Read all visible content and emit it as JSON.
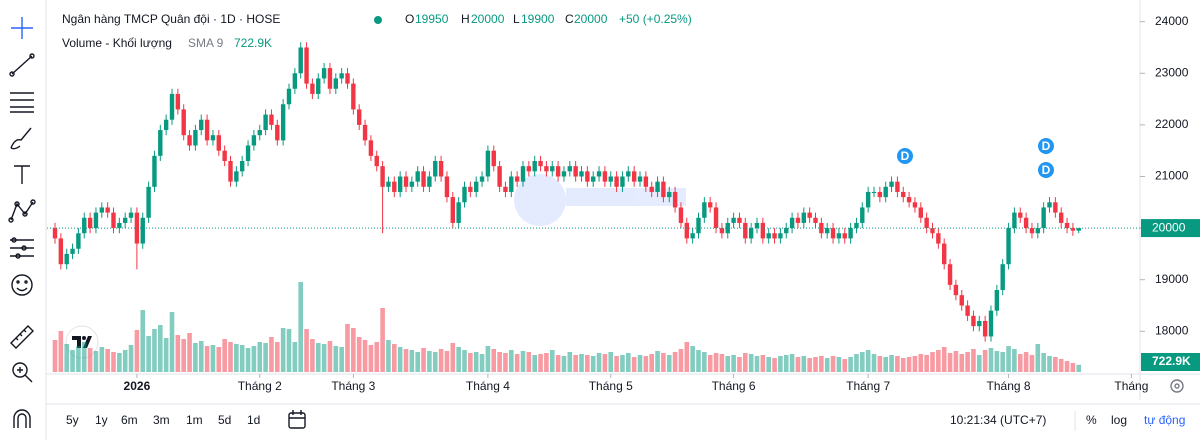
{
  "header": {
    "title": "Ngân hàng TMCP Quân đội · 1D · HOSE",
    "open_label": "O",
    "open": 19950,
    "high_label": "H",
    "high": 20000,
    "low_label": "L",
    "low": 19900,
    "close_label": "C",
    "close": 20000,
    "change": "+50 (+0.25%)"
  },
  "volume_legend": {
    "name": "Volume - Khối lượng",
    "sma": "SMA 9",
    "value": "722.9K"
  },
  "dividend_markers": [
    "D",
    "D",
    "D"
  ],
  "bottom_bar": {
    "ranges": [
      "5y",
      "1y",
      "6m",
      "3m",
      "1m",
      "5d",
      "1d"
    ],
    "time": "10:21:34 (UTC+7)",
    "percent": "%",
    "log": "log",
    "auto": "tự động"
  },
  "chart_data": {
    "type": "candlestick",
    "up_color": "#089981",
    "down_color": "#f23645",
    "ylim": [
      17250,
      24420
    ],
    "yticks": [
      18000,
      19000,
      20000,
      21000,
      22000,
      23000,
      24000
    ],
    "xticks": [
      {
        "value": 14,
        "label": "2026"
      },
      {
        "value": 35,
        "label": "Tháng 2"
      },
      {
        "value": 51,
        "label": "Tháng 3"
      },
      {
        "value": 74,
        "label": "Tháng 4"
      },
      {
        "value": 95,
        "label": "Tháng 5"
      },
      {
        "value": 116,
        "label": "Tháng 6"
      },
      {
        "value": 139,
        "label": "Tháng 7"
      },
      {
        "value": 163,
        "label": "Tháng 8"
      },
      {
        "value": 184,
        "label": "Tháng"
      }
    ],
    "volume_tag": "722.9K",
    "open": [
      20000,
      19800,
      19300,
      19500,
      19600,
      19900,
      20200,
      20000,
      20300,
      20400,
      20300,
      20000,
      20100,
      20200,
      20300,
      19700,
      20200,
      20800,
      21400,
      21900,
      22100,
      22600,
      22300,
      21800,
      21600,
      21900,
      22100,
      21700,
      21800,
      21500,
      21300,
      20900,
      21100,
      21300,
      21600,
      21800,
      21900,
      22200,
      22000,
      21700,
      22400,
      22700,
      23000,
      23500,
      22800,
      22600,
      22900,
      23100,
      22700,
      22900,
      23000,
      22800,
      22300,
      22000,
      21700,
      21400,
      21200,
      20800,
      20900,
      20700,
      21000,
      20800,
      20900,
      21100,
      20800,
      21000,
      21300,
      21000,
      20600,
      20100,
      20500,
      20800,
      20700,
      20900,
      21000,
      21500,
      21200,
      20800,
      20700,
      21000,
      20900,
      21200,
      21100,
      21300,
      21200,
      21100,
      21200,
      21000,
      21100,
      21200,
      21000,
      21100,
      20900,
      21000,
      21100,
      20900,
      21000,
      20800,
      21000,
      21100,
      20900,
      21000,
      20800,
      20700,
      20900,
      20600,
      20700,
      20400,
      20100,
      19800,
      19900,
      20200,
      20500,
      20400,
      20000,
      19900,
      20100,
      20200,
      20100,
      19800,
      20000,
      20100,
      19800,
      19900,
      19800,
      19900,
      20000,
      20200,
      20100,
      20300,
      20200,
      20100,
      19900,
      20000,
      19800,
      19900,
      19800,
      20000,
      20100,
      20400,
      20700,
      20700,
      20600,
      20800,
      20900,
      20700,
      20600,
      20500,
      20400,
      20200,
      20000,
      19900,
      19700,
      19300,
      18900,
      18700,
      18500,
      18300,
      18100,
      18200,
      17900,
      18400,
      18800,
      19300,
      20000,
      20300,
      20200,
      20000,
      19900,
      20000,
      20400,
      20500,
      20300,
      20100,
      20000,
      19950
    ],
    "high": [
      20100,
      19900,
      19600,
      19700,
      20000,
      20300,
      20300,
      20400,
      20500,
      20500,
      20400,
      20200,
      20300,
      20400,
      20400,
      20300,
      20900,
      21500,
      22000,
      22200,
      22700,
      22700,
      22400,
      21900,
      22000,
      22200,
      22200,
      21900,
      21900,
      21600,
      21400,
      21200,
      21400,
      21700,
      21900,
      22000,
      22300,
      22300,
      22100,
      22500,
      22800,
      23100,
      23600,
      23600,
      22900,
      23000,
      23200,
      23200,
      23000,
      23100,
      23100,
      22900,
      22400,
      22100,
      21800,
      21500,
      21300,
      21000,
      21000,
      21100,
      21100,
      21000,
      21200,
      21200,
      21100,
      21400,
      21400,
      21100,
      20700,
      20600,
      20900,
      20900,
      21000,
      21100,
      21600,
      21600,
      21300,
      20900,
      21100,
      21100,
      21300,
      21300,
      21400,
      21400,
      21300,
      21300,
      21300,
      21200,
      21300,
      21300,
      21200,
      21200,
      21100,
      21200,
      21200,
      21100,
      21100,
      21100,
      21200,
      21200,
      21100,
      21100,
      20900,
      21000,
      21000,
      20800,
      20800,
      20500,
      20200,
      20000,
      20300,
      20600,
      20600,
      20500,
      20100,
      20200,
      20300,
      20300,
      20200,
      20100,
      20200,
      20200,
      20000,
      20000,
      20000,
      20100,
      20300,
      20300,
      20400,
      20400,
      20300,
      20200,
      20100,
      20100,
      20000,
      20000,
      20100,
      20200,
      20500,
      20800,
      20800,
      20800,
      20900,
      21000,
      21000,
      20800,
      20700,
      20600,
      20500,
      20300,
      20100,
      20000,
      19800,
      19400,
      19000,
      18800,
      18600,
      18400,
      18300,
      18300,
      18500,
      18900,
      19400,
      20100,
      20400,
      20400,
      20300,
      20100,
      20100,
      20500,
      20600,
      20600,
      20400,
      20200,
      20100,
      20000
    ],
    "low": [
      19700,
      19200,
      19200,
      19400,
      19500,
      19800,
      19900,
      19900,
      20200,
      20200,
      19900,
      19900,
      20000,
      20100,
      19200,
      19600,
      20100,
      20700,
      21300,
      21800,
      22000,
      22200,
      21700,
      21500,
      21500,
      21800,
      21600,
      21600,
      21400,
      21200,
      20800,
      20800,
      21000,
      21200,
      21500,
      21700,
      21800,
      21900,
      21600,
      21600,
      22300,
      22600,
      22900,
      22700,
      22500,
      22500,
      22800,
      22600,
      22600,
      22800,
      22700,
      22200,
      21900,
      21600,
      21300,
      21100,
      19900,
      20700,
      20600,
      20600,
      20700,
      20700,
      20800,
      20700,
      20700,
      20900,
      20900,
      20500,
      20000,
      20000,
      20400,
      20600,
      20600,
      20800,
      20900,
      21100,
      20700,
      20600,
      20600,
      20800,
      20800,
      21000,
      21000,
      21100,
      21000,
      21000,
      20900,
      20900,
      21000,
      20900,
      20900,
      20800,
      20800,
      20900,
      20800,
      20800,
      20700,
      20700,
      20900,
      20800,
      20800,
      20700,
      20600,
      20600,
      20500,
      20500,
      20300,
      20000,
      19700,
      19700,
      19800,
      20100,
      20300,
      19900,
      19800,
      19800,
      20000,
      20000,
      19700,
      19700,
      19900,
      19700,
      19700,
      19700,
      19700,
      19800,
      19900,
      20000,
      20000,
      20100,
      20000,
      19800,
      19800,
      19700,
      19700,
      19700,
      19700,
      19900,
      20000,
      20300,
      20600,
      20500,
      20500,
      20700,
      20600,
      20500,
      20400,
      20300,
      20100,
      19900,
      19800,
      19600,
      19200,
      18800,
      18600,
      18400,
      18200,
      18000,
      18000,
      17800,
      17800,
      18300,
      18700,
      19200,
      19900,
      20100,
      19900,
      19800,
      19800,
      19900,
      20300,
      20200,
      20000,
      19900,
      19850,
      19900
    ],
    "close": [
      19800,
      19300,
      19500,
      19600,
      19900,
      20200,
      20000,
      20300,
      20400,
      20300,
      20000,
      20100,
      20200,
      20300,
      19700,
      20200,
      20800,
      21400,
      21900,
      22100,
      22600,
      22300,
      21800,
      21600,
      21900,
      22100,
      21700,
      21800,
      21500,
      21300,
      20900,
      21100,
      21300,
      21600,
      21800,
      21900,
      22200,
      22000,
      21700,
      22400,
      22700,
      23000,
      23500,
      22800,
      22600,
      22900,
      23100,
      22700,
      22900,
      23000,
      22800,
      22300,
      22000,
      21700,
      21400,
      21200,
      20800,
      20900,
      20700,
      21000,
      20800,
      20900,
      21100,
      20800,
      21000,
      21300,
      21000,
      20600,
      20100,
      20500,
      20800,
      20700,
      20900,
      21000,
      21500,
      21200,
      20800,
      20700,
      21000,
      20900,
      21200,
      21100,
      21300,
      21200,
      21100,
      21200,
      21000,
      21100,
      21200,
      21000,
      21100,
      20900,
      21000,
      21100,
      20900,
      21000,
      20800,
      21000,
      21100,
      20900,
      21000,
      20800,
      20700,
      20900,
      20600,
      20700,
      20400,
      20100,
      19800,
      19900,
      20200,
      20500,
      20400,
      20000,
      19900,
      20100,
      20200,
      20100,
      19800,
      20000,
      20100,
      19800,
      19900,
      19800,
      19900,
      20000,
      20200,
      20100,
      20300,
      20200,
      20100,
      19900,
      20000,
      19800,
      19900,
      19800,
      20000,
      20100,
      20400,
      20700,
      20700,
      20600,
      20800,
      20900,
      20700,
      20600,
      20500,
      20400,
      20200,
      20000,
      19900,
      19700,
      19300,
      18900,
      18700,
      18500,
      18300,
      18100,
      18200,
      17900,
      18400,
      18800,
      19300,
      20000,
      20300,
      20200,
      20000,
      19900,
      20000,
      20400,
      20500,
      20300,
      20100,
      20000,
      19950,
      20000
    ],
    "volume": [
      3200000,
      4100000,
      2800000,
      2200000,
      2600000,
      3000000,
      2400000,
      2100000,
      2500000,
      2300000,
      2000000,
      1900000,
      2200000,
      2700000,
      4200000,
      6200000,
      3600000,
      4300000,
      4700000,
      3400000,
      6000000,
      3700000,
      3300000,
      3900000,
      2900000,
      3100000,
      2600000,
      2700000,
      2500000,
      3300000,
      3000000,
      2800000,
      2700000,
      2400000,
      2600000,
      3000000,
      2900000,
      3500000,
      3000000,
      4400000,
      4300000,
      3000000,
      9000000,
      4300000,
      3300000,
      2900000,
      2800000,
      3100000,
      2600000,
      2500000,
      4800000,
      4400000,
      3500000,
      3200000,
      2700000,
      3000000,
      6400000,
      3200000,
      2800000,
      2500000,
      2300000,
      2200000,
      2000000,
      2400000,
      2100000,
      2000000,
      2300000,
      2100000,
      2900000,
      2500000,
      2200000,
      1900000,
      2000000,
      1800000,
      2600000,
      2300000,
      2000000,
      1900000,
      2200000,
      1800000,
      2100000,
      2000000,
      1700000,
      1800000,
      1900000,
      2200000,
      1700000,
      1600000,
      2000000,
      1700000,
      1800000,
      1700000,
      1600000,
      1900000,
      1800000,
      2000000,
      1600000,
      1700000,
      1900000,
      1500000,
      1700000,
      1600000,
      1800000,
      2100000,
      1900000,
      1700000,
      2000000,
      2300000,
      3000000,
      2600000,
      2200000,
      2000000,
      1700000,
      1900000,
      1800000,
      1600000,
      1700000,
      1500000,
      1900000,
      1800000,
      1600000,
      1700000,
      1500000,
      1400000,
      1600000,
      1700000,
      1800000,
      1500000,
      1600000,
      1400000,
      1500000,
      1600000,
      1400000,
      1600000,
      1500000,
      1300000,
      1500000,
      1800000,
      2000000,
      2200000,
      1800000,
      1600000,
      1500000,
      1700000,
      1600000,
      1400000,
      1500000,
      1600000,
      1800000,
      1700000,
      2000000,
      2200000,
      2500000,
      1900000,
      2100000,
      1800000,
      2000000,
      2300000,
      1700000,
      2200000,
      2400000,
      2100000,
      2000000,
      2600000,
      2300000,
      1800000,
      2000000,
      1700000,
      2800000,
      1900000,
      1600000,
      1500000,
      1300000,
      1100000,
      900000,
      722900
    ]
  }
}
